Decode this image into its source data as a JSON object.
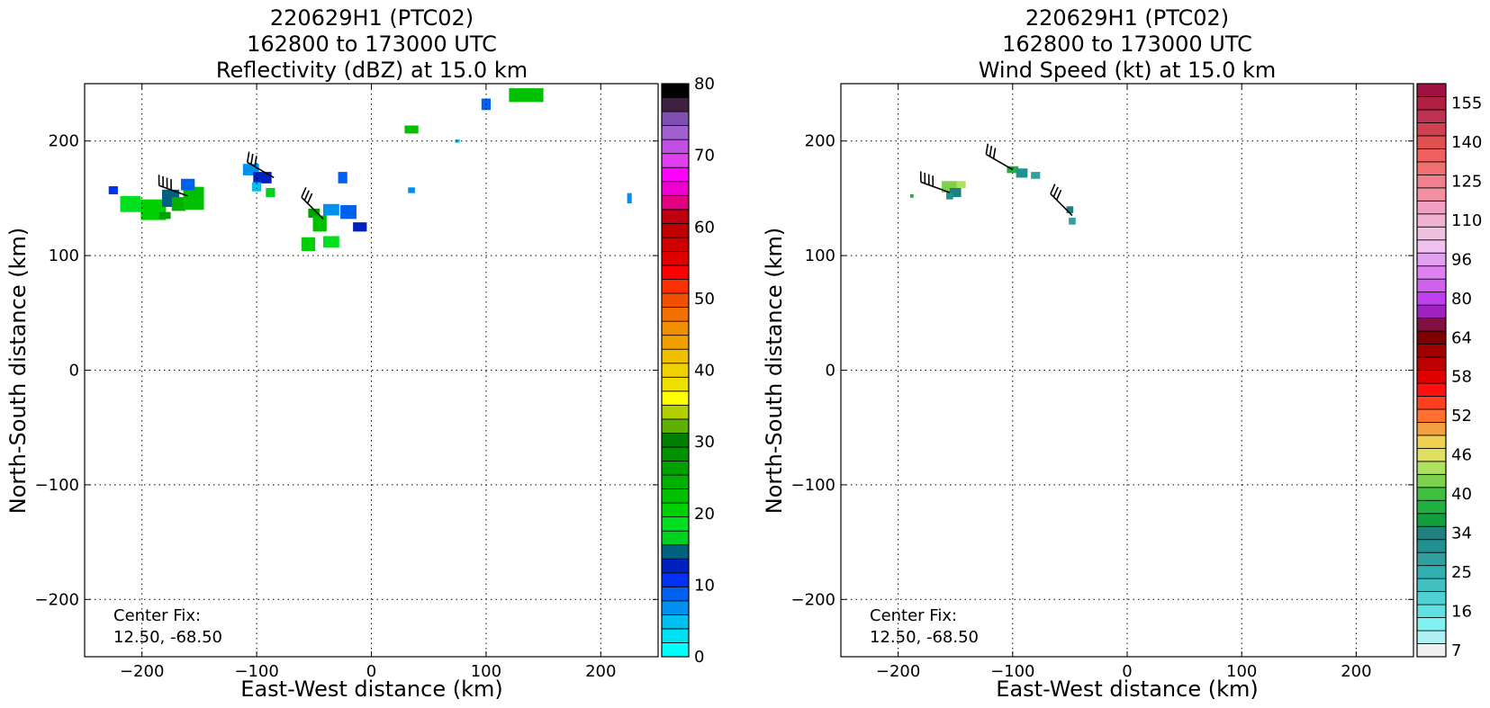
{
  "chart_data": [
    {
      "type": "heatmap",
      "title_lines": [
        "220629H1 (PTC02)",
        "162800 to 173000 UTC",
        "Reflectivity (dBZ) at 15.0 km"
      ],
      "xlabel": "East-West distance (km)",
      "ylabel": "North-South distance (km)",
      "xlim": [
        -250,
        250
      ],
      "ylim": [
        -250,
        250
      ],
      "xticks": [
        -200,
        -100,
        0,
        100,
        200
      ],
      "yticks": [
        -200,
        -100,
        0,
        100,
        200
      ],
      "xtick_labels": [
        "−200",
        "−100",
        "0",
        "100",
        "200"
      ],
      "ytick_labels": [
        "−200",
        "−100",
        "0",
        "100",
        "200"
      ],
      "grid": true,
      "annotation": [
        "Center Fix:",
        "12.50, -68.50"
      ],
      "colorbar": {
        "labels": [
          "0",
          "10",
          "20",
          "30",
          "40",
          "50",
          "60",
          "70",
          "80"
        ],
        "label_values": [
          0,
          10,
          20,
          30,
          40,
          50,
          60,
          70,
          80
        ],
        "min": 0,
        "max": 80,
        "colors": [
          "#00ffff",
          "#00e0f0",
          "#00c0f0",
          "#0090f0",
          "#0060f0",
          "#0030f0",
          "#0020c0",
          "#006080",
          "#00d020",
          "#00e020",
          "#00d000",
          "#00c000",
          "#00b000",
          "#00a000",
          "#009000",
          "#008000",
          "#60b000",
          "#b0d000",
          "#ffff00",
          "#f0e000",
          "#f0d000",
          "#f0c000",
          "#f0a000",
          "#f09000",
          "#f07000",
          "#f05000",
          "#ff3000",
          "#ff0000",
          "#e00000",
          "#d00000",
          "#c00000",
          "#c00010",
          "#e00080",
          "#f000d0",
          "#ff00ff",
          "#e040f0",
          "#c050e0",
          "#a060d0",
          "#8050b0",
          "#402040",
          "#000000"
        ]
      },
      "cells": [
        {
          "x": -225,
          "y": 157,
          "w": 8,
          "h": 7,
          "v": 5
        },
        {
          "x": -210,
          "y": 145,
          "w": 18,
          "h": 14,
          "v": 9
        },
        {
          "x": -190,
          "y": 140,
          "w": 22,
          "h": 18,
          "v": 10
        },
        {
          "x": -175,
          "y": 150,
          "w": 15,
          "h": 15,
          "v": 7
        },
        {
          "x": -168,
          "y": 145,
          "w": 12,
          "h": 12,
          "v": 12
        },
        {
          "x": -155,
          "y": 150,
          "w": 18,
          "h": 20,
          "v": 11
        },
        {
          "x": -160,
          "y": 162,
          "w": 12,
          "h": 10,
          "v": 4
        },
        {
          "x": -180,
          "y": 135,
          "w": 10,
          "h": 6,
          "v": 13
        },
        {
          "x": -105,
          "y": 175,
          "w": 14,
          "h": 10,
          "v": 3
        },
        {
          "x": -95,
          "y": 168,
          "w": 16,
          "h": 10,
          "v": 6
        },
        {
          "x": -88,
          "y": 155,
          "w": 8,
          "h": 8,
          "v": 8
        },
        {
          "x": -100,
          "y": 160,
          "w": 8,
          "h": 8,
          "v": 2
        },
        {
          "x": -25,
          "y": 168,
          "w": 8,
          "h": 10,
          "v": 4
        },
        {
          "x": -50,
          "y": 137,
          "w": 10,
          "h": 8,
          "v": 13
        },
        {
          "x": -45,
          "y": 128,
          "w": 12,
          "h": 14,
          "v": 11
        },
        {
          "x": -35,
          "y": 140,
          "w": 14,
          "h": 10,
          "v": 3
        },
        {
          "x": -20,
          "y": 138,
          "w": 14,
          "h": 12,
          "v": 4
        },
        {
          "x": -10,
          "y": 125,
          "w": 12,
          "h": 8,
          "v": 6
        },
        {
          "x": -55,
          "y": 110,
          "w": 12,
          "h": 12,
          "v": 10
        },
        {
          "x": -35,
          "y": 112,
          "w": 14,
          "h": 10,
          "v": 9
        },
        {
          "x": 35,
          "y": 210,
          "w": 12,
          "h": 7,
          "v": 11
        },
        {
          "x": 100,
          "y": 232,
          "w": 8,
          "h": 10,
          "v": 4
        },
        {
          "x": 135,
          "y": 240,
          "w": 30,
          "h": 12,
          "v": 11
        },
        {
          "x": 75,
          "y": 200,
          "w": 4,
          "h": 3,
          "v": 2
        },
        {
          "x": 225,
          "y": 150,
          "w": 4,
          "h": 9,
          "v": 3
        },
        {
          "x": 35,
          "y": 157,
          "w": 6,
          "h": 5,
          "v": 3
        }
      ],
      "barbs": [
        {
          "x": -160,
          "y": 152,
          "dir": 290,
          "barbs": 4
        },
        {
          "x": -85,
          "y": 168,
          "dir": 300,
          "barbs": 3
        },
        {
          "x": -42,
          "y": 132,
          "dir": 315,
          "barbs": 3
        }
      ]
    },
    {
      "type": "heatmap",
      "title_lines": [
        "220629H1 (PTC02)",
        "162800 to 173000 UTC",
        "Wind Speed (kt) at 15.0 km"
      ],
      "xlabel": "East-West distance (km)",
      "ylabel": "North-South distance (km)",
      "xlim": [
        -250,
        250
      ],
      "ylim": [
        -250,
        250
      ],
      "xticks": [
        -200,
        -100,
        0,
        100,
        200
      ],
      "yticks": [
        -200,
        -100,
        0,
        100,
        200
      ],
      "xtick_labels": [
        "−200",
        "−100",
        "0",
        "100",
        "200"
      ],
      "ytick_labels": [
        "−200",
        "−100",
        "0",
        "100",
        "200"
      ],
      "grid": true,
      "annotation": [
        "Center Fix:",
        "12.50, -68.50"
      ],
      "colorbar": {
        "labels": [
          "7",
          "16",
          "25",
          "34",
          "40",
          "46",
          "52",
          "58",
          "64",
          "80",
          "96",
          "110",
          "125",
          "140",
          "155"
        ],
        "label_positions": [
          0.5,
          3.5,
          6.5,
          9.5,
          12.5,
          15.5,
          18.5,
          21.5,
          24.5,
          27.5,
          30.5,
          33.5,
          36.5,
          39.5,
          42.5
        ],
        "colors": [
          "#f0f0f0",
          "#b0f0f0",
          "#80f0f0",
          "#60e0e0",
          "#50d0d0",
          "#40c0c0",
          "#30b0b0",
          "#30a0a0",
          "#209090",
          "#208080",
          "#10a040",
          "#20b040",
          "#40c040",
          "#80d050",
          "#b0e060",
          "#e0e060",
          "#f0d050",
          "#f0a040",
          "#ff7030",
          "#ff4020",
          "#ff1010",
          "#e00000",
          "#c00000",
          "#a00000",
          "#800000",
          "#801040",
          "#a020c0",
          "#c040f0",
          "#d060f0",
          "#e080f0",
          "#e0a0f0",
          "#f0c0f0",
          "#f0c0e0",
          "#f0b0d0",
          "#f0a0c0",
          "#f090a0",
          "#f08090",
          "#f07070",
          "#f06060",
          "#e05050",
          "#d04050",
          "#c03050",
          "#b02040",
          "#a01040"
        ]
      },
      "cells": [
        {
          "x": -188,
          "y": 152,
          "w": 3,
          "h": 3,
          "v": 11
        },
        {
          "x": -155,
          "y": 160,
          "w": 14,
          "h": 10,
          "v": 13
        },
        {
          "x": -150,
          "y": 155,
          "w": 10,
          "h": 8,
          "v": 9
        },
        {
          "x": -145,
          "y": 162,
          "w": 8,
          "h": 6,
          "v": 14
        },
        {
          "x": -155,
          "y": 152,
          "w": 6,
          "h": 6,
          "v": 8
        },
        {
          "x": -100,
          "y": 175,
          "w": 10,
          "h": 6,
          "v": 11
        },
        {
          "x": -92,
          "y": 172,
          "w": 10,
          "h": 8,
          "v": 8
        },
        {
          "x": -80,
          "y": 170,
          "w": 8,
          "h": 6,
          "v": 7
        },
        {
          "x": -50,
          "y": 140,
          "w": 6,
          "h": 6,
          "v": 9
        },
        {
          "x": -48,
          "y": 130,
          "w": 6,
          "h": 6,
          "v": 7
        }
      ],
      "barbs": [
        {
          "x": -155,
          "y": 155,
          "dir": 290,
          "barbs": 4
        },
        {
          "x": -100,
          "y": 175,
          "dir": 300,
          "barbs": 3
        },
        {
          "x": -48,
          "y": 135,
          "dir": 315,
          "barbs": 3
        }
      ]
    }
  ]
}
